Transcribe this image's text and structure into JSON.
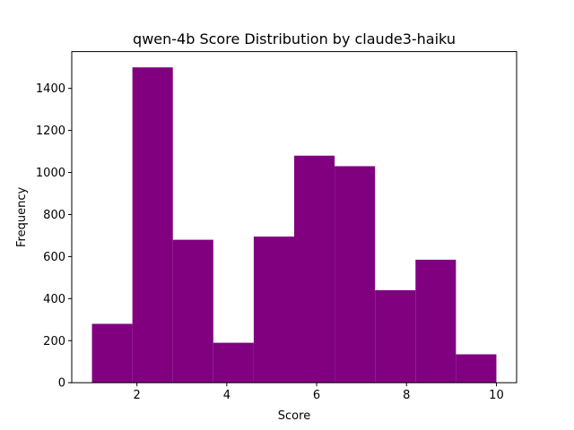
{
  "chart_data": {
    "type": "bar",
    "title": "qwen-4b Score Distribution by claude3-haiku",
    "xlabel": "Score",
    "ylabel": "Frequency",
    "bar_color": "#800080",
    "bin_edges": [
      1.0,
      1.9,
      2.8,
      3.7,
      4.6,
      5.5,
      6.4,
      7.3,
      8.2,
      9.1,
      10.0
    ],
    "values": [
      280,
      1500,
      680,
      190,
      695,
      1080,
      1030,
      440,
      585,
      135
    ],
    "xlim": [
      0.55,
      10.45
    ],
    "ylim": [
      0,
      1575
    ],
    "xticks": [
      2,
      4,
      6,
      8,
      10
    ],
    "xtick_labels": [
      "2",
      "4",
      "6",
      "8",
      "10"
    ],
    "yticks": [
      0,
      200,
      400,
      600,
      800,
      1000,
      1200,
      1400
    ],
    "ytick_labels": [
      "0",
      "200",
      "400",
      "600",
      "800",
      "1000",
      "1200",
      "1400"
    ],
    "grid": false,
    "legend": "none"
  }
}
